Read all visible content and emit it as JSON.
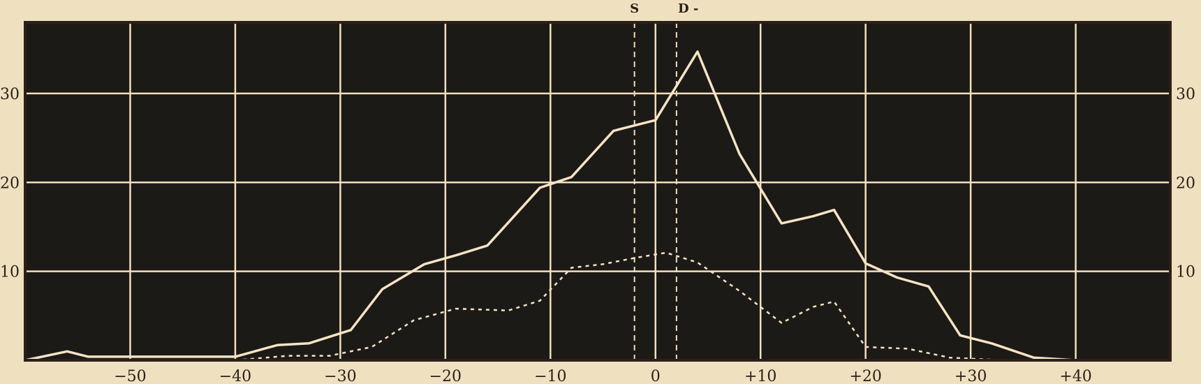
{
  "chart_data": {
    "type": "line",
    "title": "",
    "xlabel": "",
    "ylabel": "",
    "xlim": [
      -60,
      49
    ],
    "ylim": [
      0,
      38
    ],
    "x_ticks": [
      {
        "value": -50,
        "label": "−50"
      },
      {
        "value": -40,
        "label": "−40"
      },
      {
        "value": -30,
        "label": "−30"
      },
      {
        "value": -20,
        "label": "−20"
      },
      {
        "value": -10,
        "label": "−10"
      },
      {
        "value": 0,
        "label": "0"
      },
      {
        "value": 10,
        "label": "+10"
      },
      {
        "value": 20,
        "label": "+20"
      },
      {
        "value": 30,
        "label": "+30"
      },
      {
        "value": 40,
        "label": "+40"
      }
    ],
    "vertical_gridlines": [
      -50,
      -40,
      -30,
      -20,
      -10,
      0,
      10,
      20,
      30,
      40
    ],
    "y_ticks": [
      {
        "value": 10,
        "label": "10"
      },
      {
        "value": 20,
        "label": "20"
      },
      {
        "value": 30,
        "label": "30"
      }
    ],
    "markers": [
      {
        "label": "S",
        "x": -2
      },
      {
        "label": "D",
        "x": 2
      }
    ],
    "marker_suffix": "-",
    "grid": true,
    "colors": {
      "background": "#efe1c0",
      "plot_background": "#1c1a17",
      "grid": "#f3dfbc",
      "series": "#f6e4c4",
      "text": "#2a2018"
    },
    "series": [
      {
        "style": "solid",
        "x": [
          -60,
          -56,
          -54,
          -40,
          -36,
          -33,
          -29,
          -26,
          -22,
          -19,
          -16,
          -11,
          -9,
          -8,
          -4,
          -2,
          0,
          4,
          8,
          12,
          15,
          17,
          20,
          23,
          26,
          29,
          32,
          36,
          40
        ],
        "y": [
          0,
          1,
          0.4,
          0.4,
          1.7,
          1.9,
          3.4,
          8,
          10.8,
          11.8,
          12.9,
          19.4,
          20.2,
          20.6,
          25.8,
          26.4,
          27,
          34.7,
          23.2,
          15.4,
          16.2,
          16.9,
          10.9,
          9.3,
          8.3,
          2.8,
          1.9,
          0.3,
          0
        ]
      },
      {
        "style": "dashed",
        "x": [
          -40,
          -35,
          -31,
          -27,
          -23,
          -19,
          -14,
          -11,
          -8,
          -5,
          -2,
          1,
          4,
          8,
          12,
          15,
          17,
          20,
          22,
          24,
          28,
          33
        ],
        "y": [
          0,
          0.5,
          0.5,
          1.5,
          4.5,
          5.8,
          5.6,
          6.7,
          10.4,
          10.8,
          11.5,
          12.1,
          11,
          7.8,
          4.2,
          6,
          6.6,
          1.5,
          1.4,
          1.3,
          0.3,
          0
        ]
      }
    ]
  }
}
